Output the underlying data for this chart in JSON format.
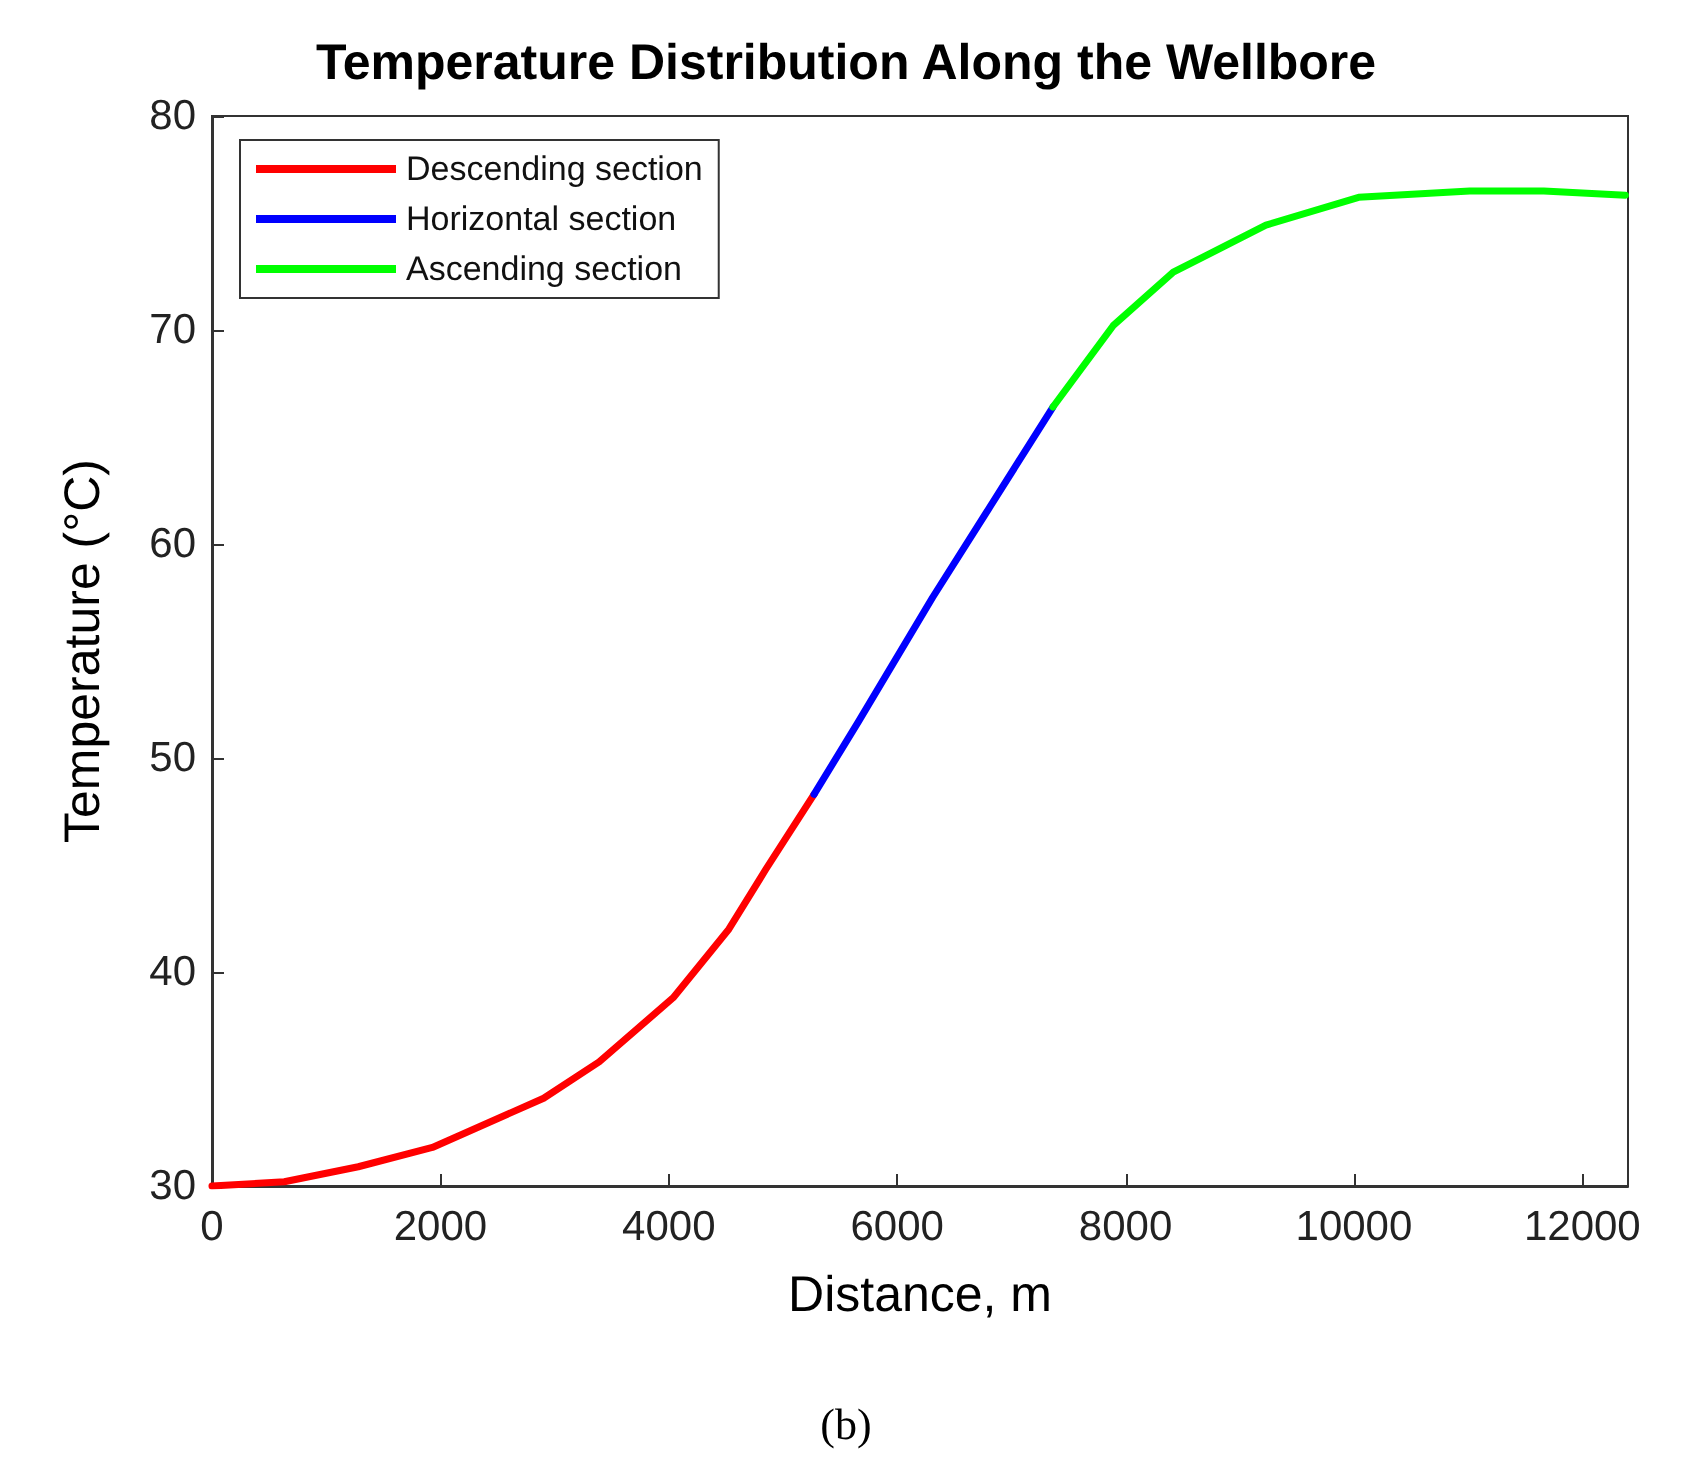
{
  "chart_data": {
    "type": "line",
    "title": "Temperature Distribution Along the Wellbore",
    "xlabel": "Distance, m",
    "ylabel": "Temperature (°C)",
    "annotations": [
      "(b)"
    ],
    "xlim": [
      0,
      12400
    ],
    "xticks": [
      0,
      2000,
      4000,
      6000,
      8000,
      10000,
      12000
    ],
    "ylim": [
      30,
      80
    ],
    "yticks": [
      30,
      40,
      50,
      60,
      70,
      80
    ],
    "grid": false,
    "legend": "top left",
    "marker": "none",
    "line_style": "solid",
    "series": [
      {
        "name": "Descending section",
        "color": "#ff0000",
        "x": [
          0,
          633,
          1281,
          1930,
          2904,
          3390,
          4039,
          4526,
          4850,
          5272
        ],
        "values": [
          30,
          30.2,
          30.9,
          31.8,
          34.1,
          35.8,
          38.8,
          42.0,
          44.8,
          48.3
        ]
      },
      {
        "name": "Horizontal section",
        "color": "#0000ff",
        "x": [
          5272,
          5661,
          6310,
          6796,
          7364
        ],
        "values": [
          48.3,
          51.7,
          57.5,
          61.6,
          66.4
        ]
      },
      {
        "name": "Ascending section",
        "color": "#00ff00",
        "x": [
          7364,
          7891,
          8418,
          9229,
          10041,
          11014,
          11663,
          12377
        ],
        "values": [
          66.4,
          70.2,
          72.7,
          74.9,
          76.2,
          76.5,
          76.5,
          76.3
        ]
      }
    ]
  }
}
